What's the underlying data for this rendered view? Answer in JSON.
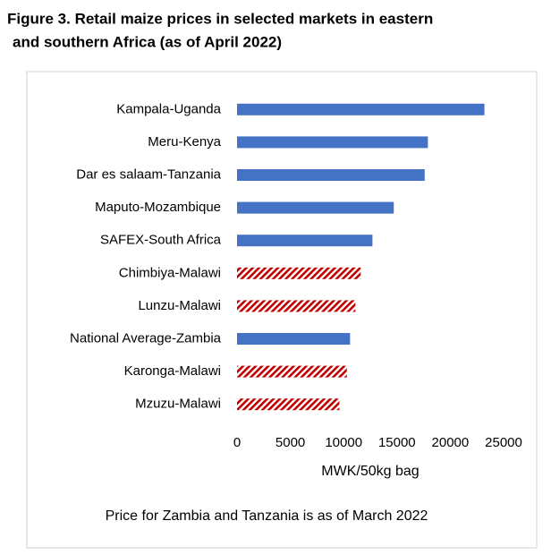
{
  "chart_data": {
    "type": "bar",
    "orientation": "horizontal",
    "title": [
      "Figure 3. Retail maize prices in selected markets in eastern",
      "and southern Africa (as of April 2022)"
    ],
    "x_label": "MWK/50kg bag",
    "annotation": "Price for Zambia and Tanzania is as of March 2022",
    "categories": [
      "Kampala-Uganda",
      "Meru-Kenya",
      "Dar es salaam-Tanzania",
      "Maputo-Mozambique",
      "SAFEX-South Africa",
      "Chimbiya-Malawi",
      "Lunzu-Malawi",
      "National Average-Zambia",
      "Karonga-Malawi",
      "Mzuzu-Malawi"
    ],
    "values": [
      23200,
      17900,
      17600,
      14700,
      12700,
      11600,
      11100,
      10600,
      10300,
      9600
    ],
    "fills": [
      "solid",
      "solid",
      "solid",
      "solid",
      "solid",
      "hatched",
      "hatched",
      "solid",
      "hatched",
      "hatched"
    ],
    "color": "#4472c4",
    "hatch_color": "#c00000",
    "xlim": [
      0,
      25000
    ],
    "xticks": [
      0,
      5000,
      10000,
      15000,
      20000,
      25000
    ],
    "grid": false
  }
}
